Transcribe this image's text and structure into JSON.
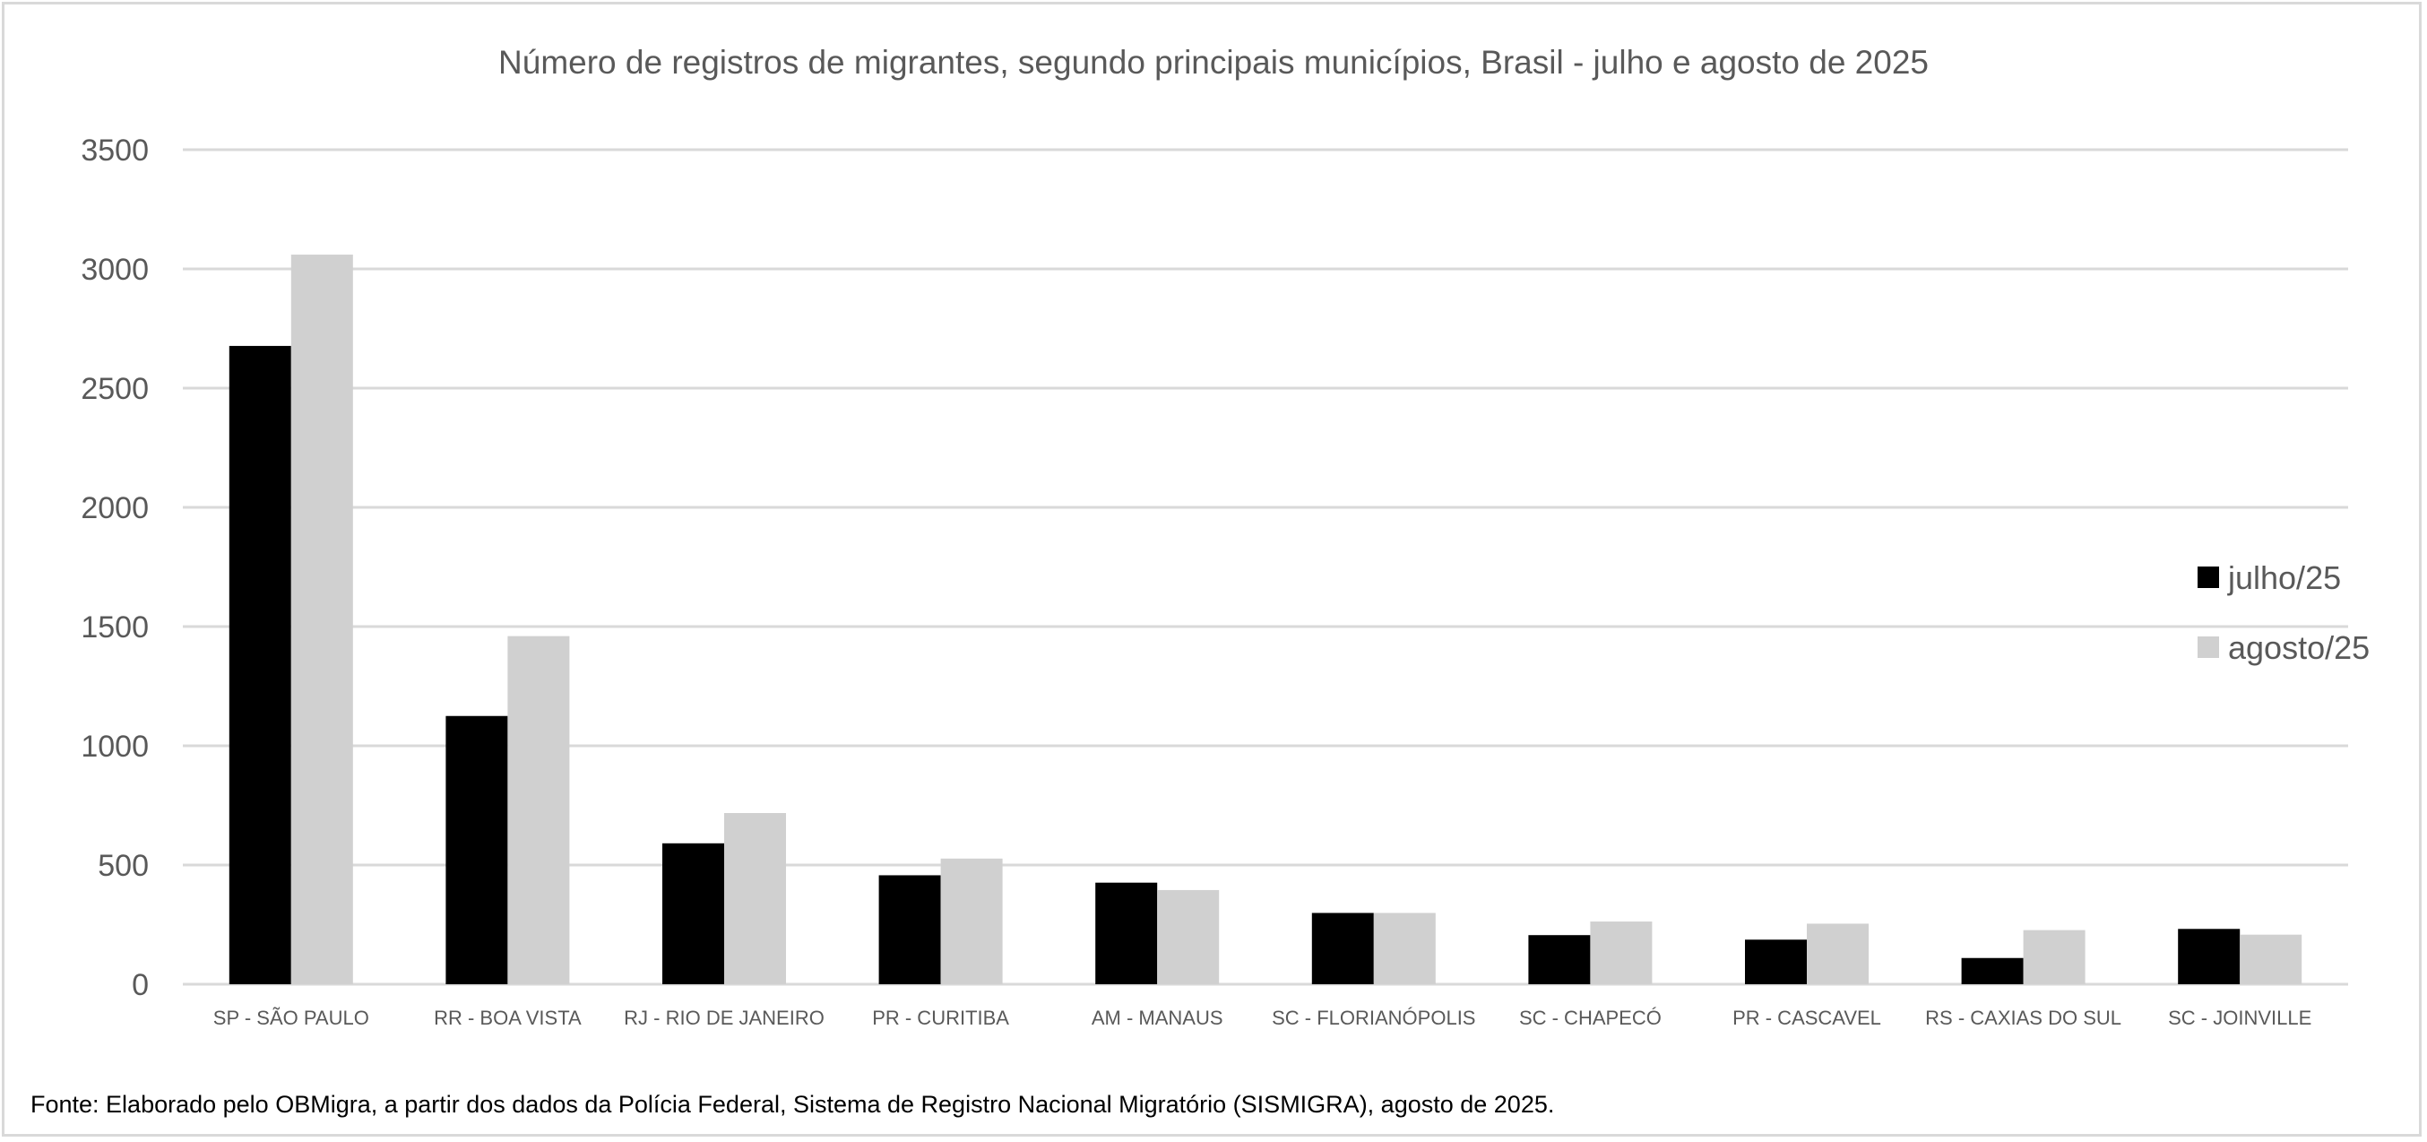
{
  "chart_data": {
    "type": "bar",
    "title": "Número de registros de migrantes, segundo principais municípios, Brasil - julho e agosto de 2025",
    "xlabel": "",
    "ylabel": "",
    "ylim": [
      0,
      3500
    ],
    "yticks": [
      0,
      500,
      1000,
      1500,
      2000,
      2500,
      3000,
      3500
    ],
    "grid": true,
    "legend_position": "right",
    "categories": [
      "SP - SÃO PAULO",
      "RR - BOA VISTA",
      "RJ - RIO DE JANEIRO",
      "PR - CURITIBA",
      "AM - MANAUS",
      "SC - FLORIANÓPOLIS",
      "SC - CHAPECÓ",
      "PR - CASCAVEL",
      "RS - CAXIAS DO SUL",
      "SC - JOINVILLE"
    ],
    "series": [
      {
        "name": "julho/25",
        "color": "#000000",
        "values": [
          2677,
          1125,
          591,
          457,
          426,
          299,
          206,
          187,
          110,
          232
        ]
      },
      {
        "name": "agosto/25",
        "color": "#d0d0d0",
        "values": [
          3060,
          1460,
          718,
          527,
          395,
          299,
          263,
          254,
          227,
          208
        ]
      }
    ],
    "footnote": "Fonte: Elaborado pelo OBMigra, a partir dos dados da Polícia Federal, Sistema de Registro Nacional Migratório (SISMIGRA), agosto de 2025."
  }
}
